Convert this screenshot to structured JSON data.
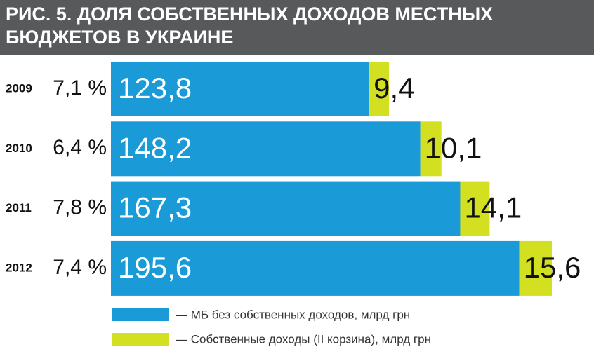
{
  "chart_data": {
    "type": "stacked-bar-horizontal",
    "title": [
      "РИС. 5. ДОЛЯ СОБСТВЕННЫХ ДОХОДОВ МЕСТНЫХ",
      "БЮДЖЕТОВ В УКРАИНЕ"
    ],
    "categories": [
      "2009",
      "2010",
      "2011",
      "2012"
    ],
    "share_labels": [
      "7,1 %",
      "6,4 %",
      "7,8 %",
      "7,4 %"
    ],
    "series": [
      {
        "name": "— МБ без собственных доходов, млрд грн",
        "color": "#1a9ad6",
        "values": [
          123.8,
          148.2,
          167.3,
          195.6
        ],
        "value_labels": [
          "123,8",
          "148,2",
          "167,3",
          "195,6"
        ]
      },
      {
        "name": "— Собственные доходы (II корзина), млрд грн",
        "color": "#d3e021",
        "values": [
          9.4,
          10.1,
          14.1,
          15.6
        ],
        "value_labels": [
          "9,4",
          "10,1",
          "14,1",
          "15,6"
        ]
      }
    ]
  }
}
